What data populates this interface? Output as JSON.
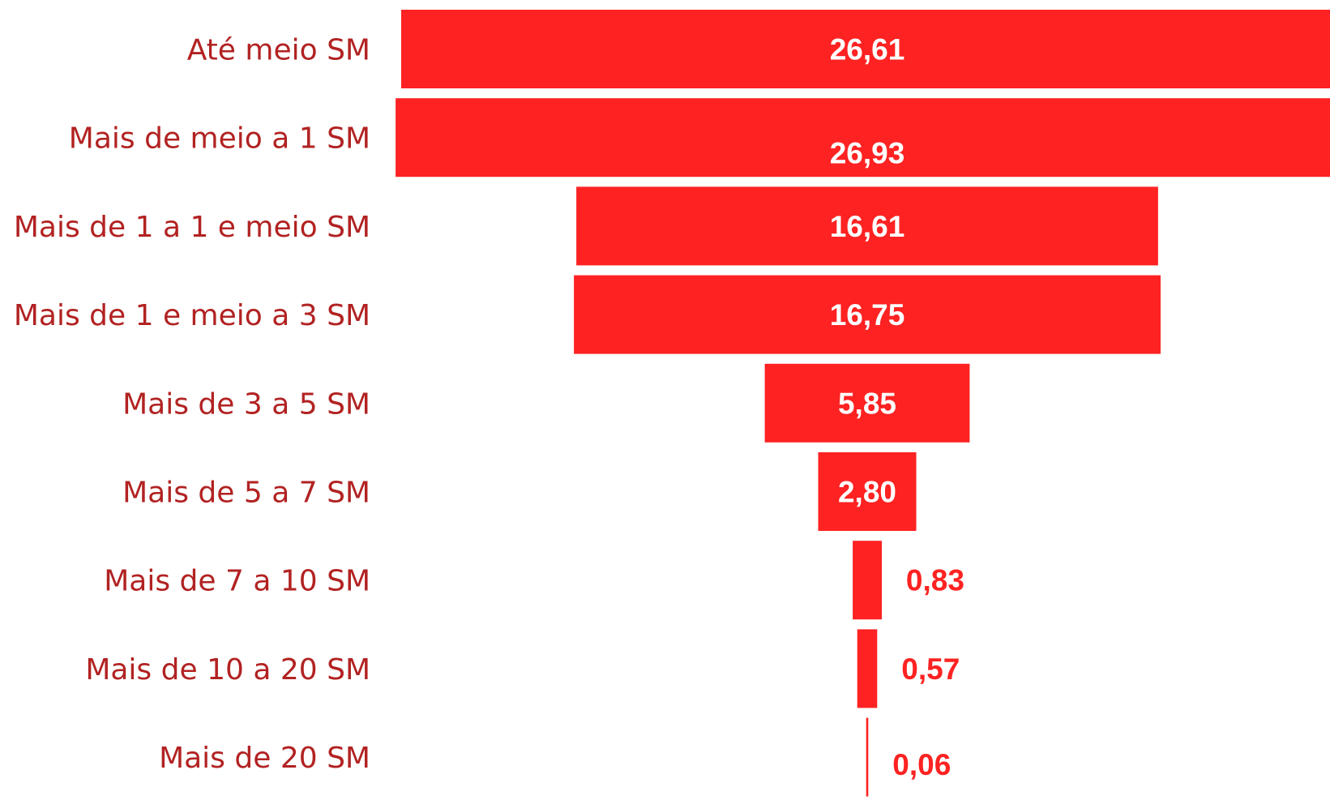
{
  "chart_data": {
    "type": "bar",
    "orientation": "horizontal-centered",
    "title": "",
    "xlabel": "",
    "ylabel": "",
    "categories": [
      "Até meio SM",
      "Mais de meio a 1 SM",
      "Mais de 1 a 1 e meio SM",
      "Mais de 1 e meio a 3 SM",
      "Mais de 3 a 5 SM",
      "Mais de 5 a 7 SM",
      "Mais de 7 a 10 SM",
      "Mais de 10 a 20 SM",
      "Mais de 20 SM"
    ],
    "values": [
      26.61,
      26.93,
      16.61,
      16.75,
      5.85,
      2.8,
      0.83,
      0.57,
      0.06
    ],
    "value_labels": [
      "26,61",
      "26,93",
      "16,61",
      "16,75",
      "5,85",
      "2,80",
      "0,83",
      "0,57",
      "0,06"
    ],
    "grid": false,
    "legend": "none",
    "colors": {
      "bar": "#fe2222",
      "category_text": "#b22222",
      "value_text_inside": "#ffffff",
      "value_text_outside": "#fe2222"
    }
  }
}
